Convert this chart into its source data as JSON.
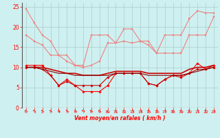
{
  "x": [
    0,
    1,
    2,
    3,
    4,
    5,
    6,
    7,
    8,
    9,
    10,
    11,
    12,
    13,
    14,
    15,
    16,
    17,
    18,
    19,
    20,
    21,
    22,
    23
  ],
  "series": [
    {
      "name": "rafales_max",
      "color": "#f08080",
      "lw": 0.8,
      "marker": "s",
      "ms": 1.8,
      "values": [
        24.5,
        21.0,
        18.0,
        16.5,
        13.0,
        13.0,
        10.5,
        10.5,
        18.0,
        18.0,
        18.0,
        16.0,
        19.5,
        19.5,
        16.5,
        15.5,
        13.5,
        18.0,
        18.0,
        18.0,
        22.0,
        24.0,
        23.5,
        23.5
      ]
    },
    {
      "name": "rafales_mid",
      "color": "#f08080",
      "lw": 0.8,
      "marker": "s",
      "ms": 1.8,
      "values": [
        18.0,
        16.5,
        15.5,
        13.0,
        13.0,
        11.5,
        10.5,
        10.0,
        10.5,
        11.5,
        16.0,
        16.0,
        16.5,
        16.0,
        16.5,
        16.5,
        13.5,
        13.5,
        13.5,
        13.5,
        18.0,
        18.0,
        18.0,
        22.5
      ]
    },
    {
      "name": "vent_max",
      "color": "#ff0000",
      "lw": 0.8,
      "marker": "D",
      "ms": 1.8,
      "values": [
        10.5,
        10.5,
        10.5,
        8.0,
        5.5,
        7.0,
        5.5,
        4.0,
        4.0,
        4.0,
        5.5,
        8.5,
        8.5,
        8.5,
        8.5,
        6.0,
        5.5,
        7.0,
        8.0,
        8.0,
        8.5,
        11.0,
        9.5,
        10.5
      ]
    },
    {
      "name": "vent_mean",
      "color": "#cc0000",
      "lw": 1.2,
      "marker": null,
      "ms": 0,
      "values": [
        10.0,
        10.0,
        10.0,
        9.5,
        9.0,
        8.5,
        8.5,
        8.0,
        8.0,
        8.0,
        8.5,
        9.0,
        9.0,
        9.0,
        9.0,
        8.5,
        8.5,
        8.5,
        8.5,
        8.5,
        9.5,
        10.0,
        10.0,
        10.5
      ]
    },
    {
      "name": "vent_min",
      "color": "#cc0000",
      "lw": 0.8,
      "marker": "D",
      "ms": 1.8,
      "values": [
        10.0,
        10.0,
        9.5,
        8.0,
        5.5,
        6.5,
        5.5,
        5.5,
        5.5,
        5.5,
        7.5,
        8.5,
        8.5,
        8.5,
        8.5,
        6.0,
        5.5,
        7.0,
        8.0,
        7.5,
        8.5,
        9.5,
        9.5,
        10.0
      ]
    },
    {
      "name": "vent_low",
      "color": "#880000",
      "lw": 0.8,
      "marker": null,
      "ms": 0,
      "values": [
        10.0,
        10.0,
        9.5,
        9.0,
        8.5,
        8.5,
        8.0,
        8.0,
        8.0,
        8.0,
        8.0,
        8.5,
        8.5,
        8.5,
        8.5,
        8.0,
        8.0,
        8.0,
        8.0,
        8.0,
        8.5,
        9.0,
        9.5,
        10.0
      ]
    }
  ],
  "xlabel": "Vent moyen/en rafales ( km/h )",
  "xlim": [
    -0.5,
    23.5
  ],
  "ylim": [
    0,
    26
  ],
  "yticks": [
    0,
    5,
    10,
    15,
    20,
    25
  ],
  "xticks": [
    0,
    1,
    2,
    3,
    4,
    5,
    6,
    7,
    8,
    9,
    10,
    11,
    12,
    13,
    14,
    15,
    16,
    17,
    18,
    19,
    20,
    21,
    22,
    23
  ],
  "bg_color": "#cef0f0",
  "grid_color": "#aacccc",
  "tick_color": "#ff0000",
  "arrow_color": "#ff0000",
  "arrow_rotations": [
    210,
    210,
    210,
    210,
    210,
    210,
    210,
    210,
    210,
    210,
    225,
    240,
    240,
    255,
    255,
    255,
    255,
    240,
    240,
    240,
    240,
    255,
    255,
    270
  ]
}
